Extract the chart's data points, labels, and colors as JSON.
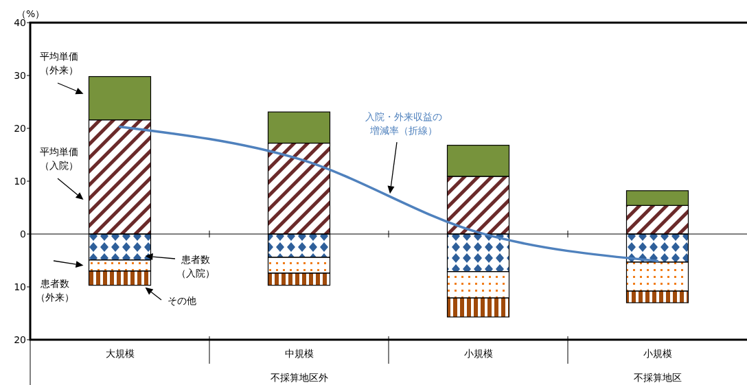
{
  "chart_data": {
    "type": "bar",
    "stacked": true,
    "ylabel": "（%）",
    "categories": [
      "大規模",
      "中規模",
      "小規模",
      "小規模"
    ],
    "series": [
      {
        "name": "平均単価（入院）",
        "color": "#6b2a2a",
        "values": [
          21.6,
          17.2,
          10.9,
          5.4
        ]
      },
      {
        "name": "平均単価（外来）",
        "color": "#77933c",
        "values": [
          8.2,
          5.9,
          5.9,
          2.8
        ]
      },
      {
        "name": "患者数（入院）",
        "color": "#2e5f9a",
        "values": [
          -4.9,
          -4.4,
          -7.1,
          -5.3
        ]
      },
      {
        "name": "患者数（外来）",
        "color": "#f07d1a",
        "values": [
          -2.1,
          -3.0,
          -5.0,
          -5.5
        ]
      },
      {
        "name": "その他",
        "color": "#a04a0a",
        "values": [
          -2.7,
          -2.3,
          -3.6,
          -2.2
        ]
      },
      {
        "name": "入院・外来収益の増減率（折線）",
        "type": "line",
        "color": "#4f81bd",
        "values": [
          20.3,
          14.2,
          0.3,
          -5.1
        ]
      }
    ],
    "ylim": [
      -20,
      40
    ],
    "yticks": [
      {
        "value": -20,
        "label": "20"
      },
      {
        "value": -10,
        "label": "10"
      },
      0,
      10,
      20,
      30,
      40
    ],
    "annotations": [
      "不採算地区外",
      "不採算地区"
    ],
    "legend": false
  }
}
